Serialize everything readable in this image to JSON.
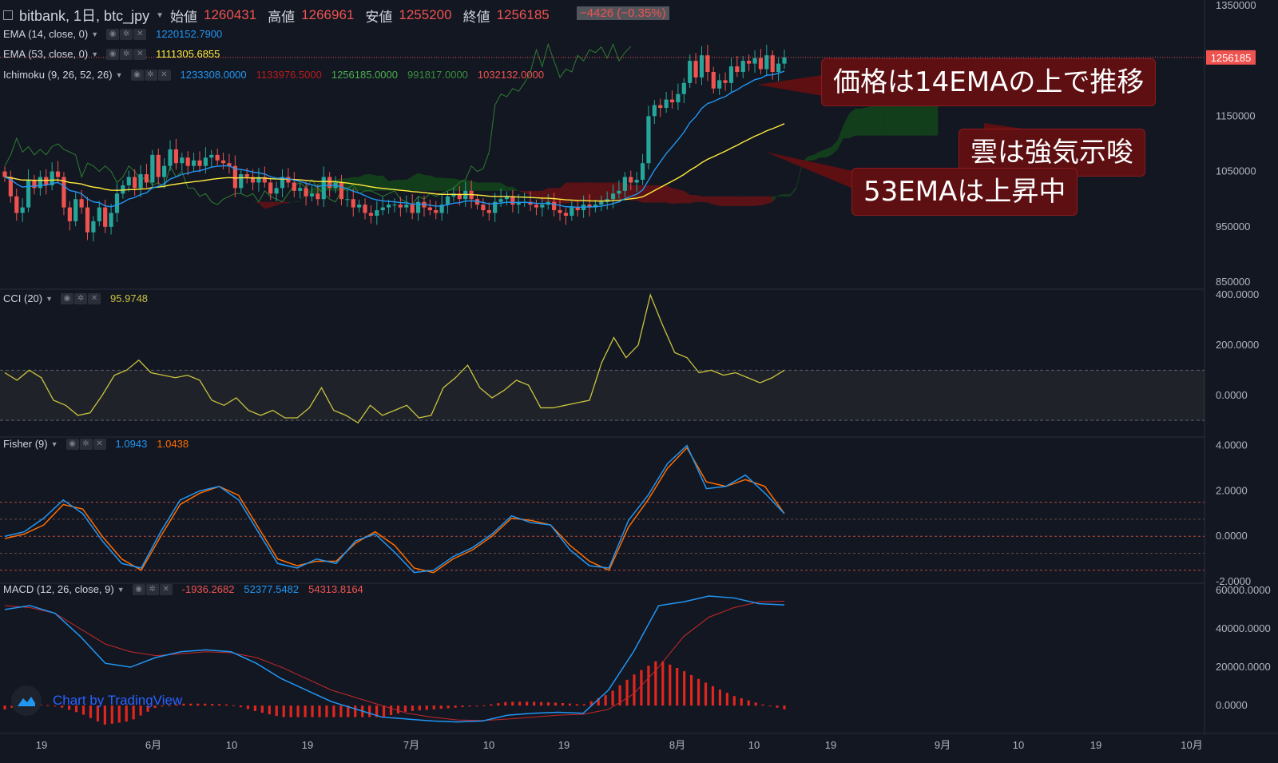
{
  "header": {
    "symbol": "bitbank, 1日, btc_jpy",
    "open_label": "始値",
    "open": "1260431",
    "high_label": "高値",
    "high": "1266961",
    "low_label": "安値",
    "low": "1255200",
    "close_label": "終値",
    "close": "1256185",
    "change": "−4426 (−0.35%)"
  },
  "indicators": {
    "ema14": {
      "name": "EMA (14, close, 0)",
      "value": "1220152.7900",
      "color": "#2196f3"
    },
    "ema53": {
      "name": "EMA (53, close, 0)",
      "value": "1111305.6855",
      "color": "#ffeb3b"
    },
    "ichimoku": {
      "name": "Ichimoku (9, 26, 52, 26)",
      "values": [
        {
          "v": "1233308.0000",
          "color": "#2196f3"
        },
        {
          "v": "1133976.5000",
          "color": "#b71c1c"
        },
        {
          "v": "1256185.0000",
          "color": "#4caf50"
        },
        {
          "v": "991817.0000",
          "color": "#388e3c"
        },
        {
          "v": "1032132.0000",
          "color": "#ef5350"
        }
      ]
    },
    "cci": {
      "name": "CCI (20)",
      "value": "95.9748",
      "color": "#c9c23f"
    },
    "fisher": {
      "name": "Fisher (9)",
      "value1": "1.0943",
      "value2": "1.0438",
      "color1": "#2196f3",
      "color2": "#ff6d00"
    },
    "macd": {
      "name": "MACD (12, 26, close, 9)",
      "hist": "-1936.2682",
      "macd": "52377.5482",
      "signal": "54313.8164",
      "hist_color": "#ef5350",
      "macd_color": "#2196f3",
      "signal_color": "#ef5350"
    }
  },
  "callouts": {
    "ema14": "価格は14EMAの上で推移",
    "cloud": "雲は強気示唆",
    "ema53": "53EMAは上昇中"
  },
  "watermark": "Chart by TradingView",
  "chart_data": [
    {
      "type": "candlestick",
      "price_axis_ticks": [
        "1350000",
        "1150000",
        "1050000",
        "950000",
        "850000"
      ],
      "last_price": "1256185",
      "time_axis_ticks": [
        "19",
        "6月",
        "10",
        "19",
        "7月",
        "10",
        "19",
        "8月",
        "10",
        "19",
        "9月",
        "10",
        "19",
        "10月"
      ],
      "ylim": [
        840000,
        1360000
      ],
      "close": [
        1040000,
        1005000,
        975000,
        985000,
        1035000,
        1020000,
        1040000,
        1025000,
        1050000,
        1040000,
        985000,
        960000,
        1000000,
        985000,
        940000,
        960000,
        985000,
        950000,
        975000,
        1010000,
        1025000,
        1040000,
        1020000,
        1045000,
        1030000,
        1080000,
        1040000,
        1060000,
        1090000,
        1065000,
        1075000,
        1060000,
        1070000,
        1060000,
        1075000,
        1080000,
        1070000,
        1065000,
        1060000,
        1020000,
        1045000,
        1040000,
        1030000,
        1040000,
        1030000,
        1010000,
        1020000,
        1040000,
        1030000,
        1015000,
        1020000,
        1005000,
        1010000,
        1000000,
        1040000,
        1020000,
        1030000,
        1000000,
        1000000,
        985000,
        990000,
        975000,
        970000,
        980000,
        985000,
        990000,
        990000,
        985000,
        990000,
        975000,
        995000,
        985000,
        980000,
        975000,
        990000,
        1005000,
        1010000,
        1000000,
        1015000,
        1000000,
        990000,
        980000,
        975000,
        995000,
        1000000,
        1005000,
        990000,
        995000,
        995000,
        990000,
        985000,
        990000,
        995000,
        980000,
        975000,
        970000,
        985000,
        980000,
        990000,
        985000,
        990000,
        995000,
        1000000,
        1010000,
        1015000,
        1040000,
        1030000,
        1035000,
        1065000,
        1150000,
        1170000,
        1165000,
        1180000,
        1175000,
        1190000,
        1210000,
        1250000,
        1220000,
        1260000,
        1230000,
        1200000,
        1215000,
        1210000,
        1240000,
        1230000,
        1250000,
        1245000,
        1255000,
        1235000,
        1260000,
        1230000,
        1245000,
        1256185
      ]
    },
    {
      "type": "line",
      "name": "CCI (20)",
      "axis_ticks": [
        "400.0000",
        "200.0000",
        "0.0000"
      ],
      "band": [
        -100,
        100
      ],
      "ylim": [
        -160,
        410
      ],
      "values": [
        90,
        60,
        100,
        70,
        -20,
        -40,
        -80,
        -70,
        0,
        80,
        100,
        140,
        90,
        80,
        70,
        80,
        60,
        -20,
        -40,
        -10,
        -60,
        -80,
        -60,
        -90,
        -90,
        -50,
        30,
        -60,
        -80,
        -110,
        -40,
        -80,
        -60,
        -40,
        -90,
        -80,
        30,
        70,
        120,
        30,
        -10,
        20,
        60,
        40,
        -50,
        -50,
        -40,
        -30,
        -20,
        130,
        230,
        150,
        200,
        400,
        280,
        170,
        150,
        90,
        100,
        80,
        90,
        70,
        50,
        70,
        100
      ]
    },
    {
      "type": "line",
      "name": "Fisher (9)",
      "axis_ticks": [
        "4.0000",
        "2.0000",
        "0.0000",
        "-2.0000"
      ],
      "levels": [
        1.5,
        0.75,
        0,
        -0.75,
        -1.5
      ],
      "ylim": [
        -2.0,
        4.2
      ],
      "series": [
        {
          "values": [
            0,
            0.2,
            0.8,
            1.6,
            1.0,
            -0.2,
            -1.2,
            -1.4,
            0.2,
            1.6,
            2.0,
            2.2,
            1.6,
            0.2,
            -1.2,
            -1.4,
            -1.0,
            -1.2,
            -0.2,
            0.1,
            -0.7,
            -1.6,
            -1.5,
            -0.9,
            -0.5,
            0.1,
            0.9,
            0.6,
            0.5,
            -0.6,
            -1.3,
            -1.4,
            0.7,
            1.8,
            3.2,
            4.0,
            2.1,
            2.2,
            2.7,
            1.9,
            1.0
          ]
        },
        {
          "values": [
            -0.1,
            0.1,
            0.5,
            1.4,
            1.2,
            0.0,
            -1.0,
            -1.5,
            0.0,
            1.4,
            1.9,
            2.2,
            1.8,
            0.4,
            -1.0,
            -1.3,
            -1.1,
            -1.1,
            -0.3,
            0.2,
            -0.4,
            -1.4,
            -1.6,
            -1.0,
            -0.6,
            0.0,
            0.8,
            0.7,
            0.5,
            -0.4,
            -1.1,
            -1.5,
            0.4,
            1.6,
            3.0,
            3.9,
            2.4,
            2.2,
            2.5,
            2.2,
            1.0
          ]
        }
      ]
    },
    {
      "type": "bar+line",
      "name": "MACD (12, 26, close, 9)",
      "axis_ticks": [
        "60000.0000",
        "40000.0000",
        "20000.0000",
        "0.0000"
      ],
      "ylim": [
        -12000,
        62000
      ],
      "macd": [
        50000,
        52000,
        48000,
        36000,
        22000,
        20000,
        25000,
        28000,
        29000,
        28000,
        22000,
        14000,
        8000,
        2000,
        -2000,
        -6000,
        -7000,
        -8000,
        -8500,
        -8000,
        -5000,
        -4000,
        -3500,
        -4000,
        8000,
        28000,
        52000,
        54000,
        57000,
        56000,
        53000,
        52377
      ],
      "signal": [
        52000,
        51000,
        48000,
        40000,
        32000,
        28000,
        26000,
        27000,
        28000,
        27500,
        25000,
        20000,
        14000,
        8000,
        4000,
        0,
        -4000,
        -6000,
        -7500,
        -7800,
        -7000,
        -6000,
        -5000,
        -4500,
        -2000,
        6000,
        20000,
        36000,
        46000,
        51000,
        54000,
        54313
      ],
      "hist": [
        -2000,
        1000,
        0,
        -4000,
        -10000,
        -8000,
        -1000,
        1000,
        1000,
        500,
        -3000,
        -6000,
        -6000,
        -6000,
        -6000,
        -6000,
        -3000,
        -2000,
        -1000,
        0,
        2000,
        2000,
        1500,
        500,
        6000,
        16000,
        24000,
        18000,
        11000,
        5000,
        1000,
        -1936
      ]
    }
  ]
}
